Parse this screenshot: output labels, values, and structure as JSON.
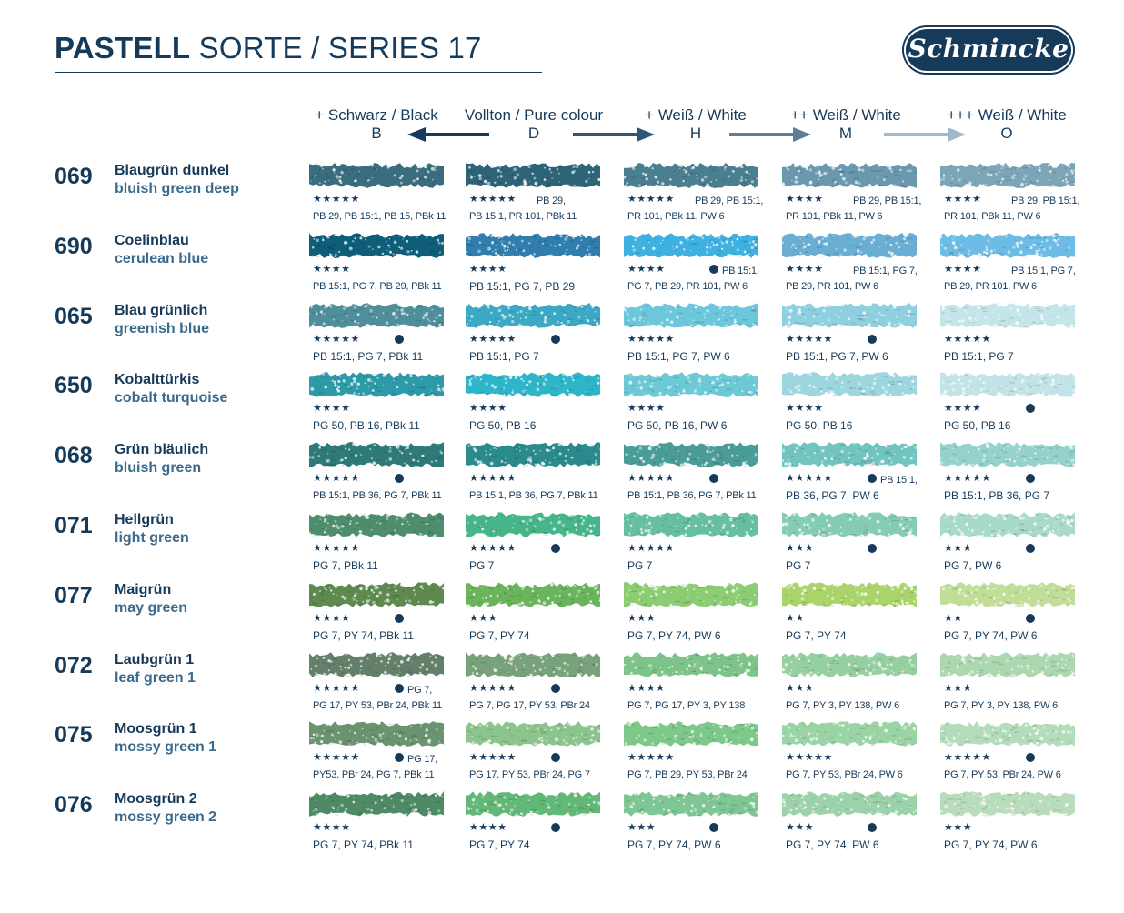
{
  "header": {
    "title_bold": "PASTELL",
    "title_rest": " SORTE / SERIES 17",
    "logo_text": "Schmincke"
  },
  "columns": [
    {
      "label": "+ Schwarz / Black",
      "letter": "B"
    },
    {
      "label": "Vollton / Pure colour",
      "letter": "D"
    },
    {
      "label": "+ Weiß / White",
      "letter": "H"
    },
    {
      "label": "++ Weiß / White",
      "letter": "M"
    },
    {
      "label": "+++ Weiß / White",
      "letter": "O"
    }
  ],
  "colors": {
    "text": "#163a5a",
    "subtitle": "#3a6a8c"
  },
  "rows": [
    {
      "num": "069",
      "de": "Blaugrün dunkel",
      "en": "bluish green deep",
      "cells": [
        {
          "color": "#3a6e7e",
          "stars": "★★★★★",
          "dot": false,
          "inline": "",
          "pig": "PB 29, PB 15:1, PB 15, PBk 11",
          "wrap": true
        },
        {
          "color": "#2d6478",
          "stars": "★★★★★",
          "dot": false,
          "inline": "PB 29,",
          "pig": "PB 15:1, PR 101, PBk 11",
          "wrap": true
        },
        {
          "color": "#4a7f90",
          "stars": "★★★★★",
          "dot": false,
          "inline": "PB 29, PB 15:1,",
          "pig": "PR 101, PBk 11, PW 6",
          "wrap": true
        },
        {
          "color": "#6a98ae",
          "stars": "★★★★",
          "dot": false,
          "inline": "PB 29, PB 15:1,",
          "pig": "PR 101, PBk 11, PW 6",
          "wrap": true
        },
        {
          "color": "#7ca6b8",
          "stars": "★★★★",
          "dot": false,
          "inline": "PB 29, PB 15:1,",
          "pig": "PR 101, PBk 11, PW 6",
          "wrap": true
        }
      ]
    },
    {
      "num": "690",
      "de": "Coelinblau",
      "en": "cerulean blue",
      "cells": [
        {
          "color": "#0e5e7a",
          "stars": "★★★★",
          "dot": false,
          "inline": "",
          "pig": "PB 15:1, PG 7, PB 29, PBk 11",
          "wrap": true
        },
        {
          "color": "#2f7eae",
          "stars": "★★★★",
          "dot": false,
          "inline": "",
          "pig": "PB 15:1, PG 7, PB 29",
          "wrap": false
        },
        {
          "color": "#3fb1e0",
          "stars": "★★★★",
          "dot": true,
          "inline": "PB 15:1,",
          "pig": "PG 7, PB 29, PR 101, PW 6",
          "wrap": true
        },
        {
          "color": "#6aaed4",
          "stars": "★★★★",
          "dot": false,
          "inline": "PB 15:1, PG 7,",
          "pig": "PB 29, PR 101, PW 6",
          "wrap": true
        },
        {
          "color": "#6cbce6",
          "stars": "★★★★",
          "dot": false,
          "inline": "PB 15:1, PG 7,",
          "pig": "PB 29, PR 101, PW 6",
          "wrap": true
        }
      ]
    },
    {
      "num": "065",
      "de": "Blau grünlich",
      "en": "greenish blue",
      "cells": [
        {
          "color": "#4f8f9c",
          "stars": "★★★★★",
          "dot": true,
          "inline": "",
          "pig": "PB 15:1, PG 7, PBk 11",
          "wrap": false
        },
        {
          "color": "#3ba9c6",
          "stars": "★★★★★",
          "dot": true,
          "inline": "",
          "pig": "PB 15:1, PG 7",
          "wrap": false
        },
        {
          "color": "#6cc6dc",
          "stars": "★★★★★",
          "dot": false,
          "inline": "",
          "pig": "PB 15:1, PG 7, PW 6",
          "wrap": false
        },
        {
          "color": "#8ed0e0",
          "stars": "★★★★★",
          "dot": true,
          "inline": "",
          "pig": "PB 15:1, PG 7, PW 6",
          "wrap": false
        },
        {
          "color": "#c4e6ea",
          "stars": "★★★★★",
          "dot": false,
          "inline": "",
          "pig": "PB 15:1, PG 7",
          "wrap": false
        }
      ]
    },
    {
      "num": "650",
      "de": "Kobalttürkis",
      "en": "cobalt turquoise",
      "cells": [
        {
          "color": "#2c9aa8",
          "stars": "★★★★",
          "dot": false,
          "inline": "",
          "pig": "PG 50, PB 16, PBk 11",
          "wrap": false
        },
        {
          "color": "#2db6c9",
          "stars": "★★★★",
          "dot": false,
          "inline": "",
          "pig": "PG 50, PB 16",
          "wrap": false
        },
        {
          "color": "#6ccad6",
          "stars": "★★★★",
          "dot": false,
          "inline": "",
          "pig": "PG 50, PB 16, PW 6",
          "wrap": false
        },
        {
          "color": "#9cd6de",
          "stars": "★★★★",
          "dot": false,
          "inline": "",
          "pig": "PG 50, PB 16",
          "wrap": false
        },
        {
          "color": "#c2e4e8",
          "stars": "★★★★",
          "dot": true,
          "inline": "",
          "pig": "PG 50, PB 16",
          "wrap": false
        }
      ]
    },
    {
      "num": "068",
      "de": "Grün bläulich",
      "en": "bluish green",
      "cells": [
        {
          "color": "#2d7a78",
          "stars": "★★★★★",
          "dot": true,
          "inline": "",
          "pig": "PB 15:1, PB 36, PG 7, PBk 11",
          "wrap": true
        },
        {
          "color": "#2a8a8c",
          "stars": "★★★★★",
          "dot": false,
          "inline": "",
          "pig": "PB 15:1, PB 36, PG 7, PBk 11",
          "wrap": true
        },
        {
          "color": "#4a9c98",
          "stars": "★★★★★",
          "dot": true,
          "inline": "",
          "pig": "PB 15:1, PB 36, PG 7, PBk 11",
          "wrap": true
        },
        {
          "color": "#72c4c0",
          "stars": "★★★★★",
          "dot": true,
          "inline": "PB 15:1,",
          "pig": "PB 36, PG 7, PW 6",
          "wrap": false
        },
        {
          "color": "#96d2cc",
          "stars": "★★★★★",
          "dot": true,
          "inline": "",
          "pig": "PB 15:1, PB 36, PG 7",
          "wrap": false
        }
      ]
    },
    {
      "num": "071",
      "de": "Hellgrün",
      "en": "light green",
      "cells": [
        {
          "color": "#4e8e6e",
          "stars": "★★★★★",
          "dot": false,
          "inline": "",
          "pig": "PG 7, PBk 11",
          "wrap": false
        },
        {
          "color": "#46b68a",
          "stars": "★★★★★",
          "dot": true,
          "inline": "",
          "pig": "PG 7",
          "wrap": false
        },
        {
          "color": "#66c0a0",
          "stars": "★★★★★",
          "dot": false,
          "inline": "",
          "pig": "PG 7",
          "wrap": false
        },
        {
          "color": "#84ccb2",
          "stars": "★★★",
          "dot": true,
          "inline": "",
          "pig": "PG 7",
          "wrap": false
        },
        {
          "color": "#a8dac8",
          "stars": "★★★",
          "dot": true,
          "inline": "",
          "pig": "PG 7, PW 6",
          "wrap": false
        }
      ]
    },
    {
      "num": "077",
      "de": "Maigrün",
      "en": "may green",
      "cells": [
        {
          "color": "#5e8a50",
          "stars": "★★★★",
          "dot": true,
          "inline": "",
          "pig": "PG 7, PY 74, PBk 11",
          "wrap": false
        },
        {
          "color": "#6ab45c",
          "stars": "★★★",
          "dot": false,
          "inline": "",
          "pig": "PG 7, PY 74",
          "wrap": false
        },
        {
          "color": "#8ccc72",
          "stars": "★★★",
          "dot": false,
          "inline": "",
          "pig": "PG 7, PY 74, PW 6",
          "wrap": false
        },
        {
          "color": "#aad46a",
          "stars": "★★",
          "dot": false,
          "inline": "",
          "pig": "PG 7, PY 74",
          "wrap": false
        },
        {
          "color": "#c0de98",
          "stars": "★★",
          "dot": true,
          "inline": "",
          "pig": "PG 7, PY 74, PW 6",
          "wrap": false
        }
      ]
    },
    {
      "num": "072",
      "de": "Laubgrün 1",
      "en": "leaf green 1",
      "cells": [
        {
          "color": "#64806a",
          "stars": "★★★★★",
          "dot": true,
          "inline": "PG 7,",
          "pig": "PG 17, PY 53, PBr 24, PBk 11",
          "wrap": true
        },
        {
          "color": "#78a27a",
          "stars": "★★★★★",
          "dot": true,
          "inline": "",
          "pig": "PG 7, PG 17, PY 53, PBr 24",
          "wrap": true
        },
        {
          "color": "#7ec48a",
          "stars": "★★★★",
          "dot": false,
          "inline": "",
          "pig": "PG 7, PG 17, PY 3, PY 138",
          "wrap": true
        },
        {
          "color": "#96d0a0",
          "stars": "★★★",
          "dot": false,
          "inline": "",
          "pig": "PG 7, PY 3, PY 138, PW 6",
          "wrap": true
        },
        {
          "color": "#acd8b0",
          "stars": "★★★",
          "dot": false,
          "inline": "",
          "pig": "PG 7, PY 3, PY 138, PW 6",
          "wrap": true
        }
      ]
    },
    {
      "num": "075",
      "de": "Moosgrün 1",
      "en": "mossy green 1",
      "cells": [
        {
          "color": "#6a9470",
          "stars": "★★★★★",
          "dot": true,
          "inline": "PG 17,",
          "pig": "PY53, PBr 24, PG 7, PBk 11",
          "wrap": true
        },
        {
          "color": "#8cc48e",
          "stars": "★★★★★",
          "dot": true,
          "inline": "",
          "pig": "PG 17, PY 53, PBr 24, PG 7",
          "wrap": true
        },
        {
          "color": "#7ec88a",
          "stars": "★★★★★",
          "dot": false,
          "inline": "",
          "pig": "PG 7, PB 29, PY 53, PBr 24",
          "wrap": true
        },
        {
          "color": "#9ad4a4",
          "stars": "★★★★★",
          "dot": false,
          "inline": "",
          "pig": "PG 7, PY 53, PBr 24, PW 6",
          "wrap": true
        },
        {
          "color": "#b2dcba",
          "stars": "★★★★★",
          "dot": true,
          "inline": "",
          "pig": "PG 7, PY 53, PBr 24, PW 6",
          "wrap": true
        }
      ]
    },
    {
      "num": "076",
      "de": "Moosgrün 2",
      "en": "mossy green 2",
      "cells": [
        {
          "color": "#4e8a64",
          "stars": "★★★★",
          "dot": false,
          "inline": "",
          "pig": "PG 7, PY 74, PBk 11",
          "wrap": false
        },
        {
          "color": "#62b876",
          "stars": "★★★★",
          "dot": true,
          "inline": "",
          "pig": "PG 7, PY 74",
          "wrap": false
        },
        {
          "color": "#7ec694",
          "stars": "★★★",
          "dot": true,
          "inline": "",
          "pig": "PG 7, PY 74, PW 6",
          "wrap": false
        },
        {
          "color": "#9cd2aa",
          "stars": "★★★",
          "dot": true,
          "inline": "",
          "pig": "PG 7, PY 74, PW 6",
          "wrap": false
        },
        {
          "color": "#b8dcbc",
          "stars": "★★★",
          "dot": false,
          "inline": "",
          "pig": "PG 7, PY 74, PW 6",
          "wrap": false
        }
      ]
    }
  ]
}
